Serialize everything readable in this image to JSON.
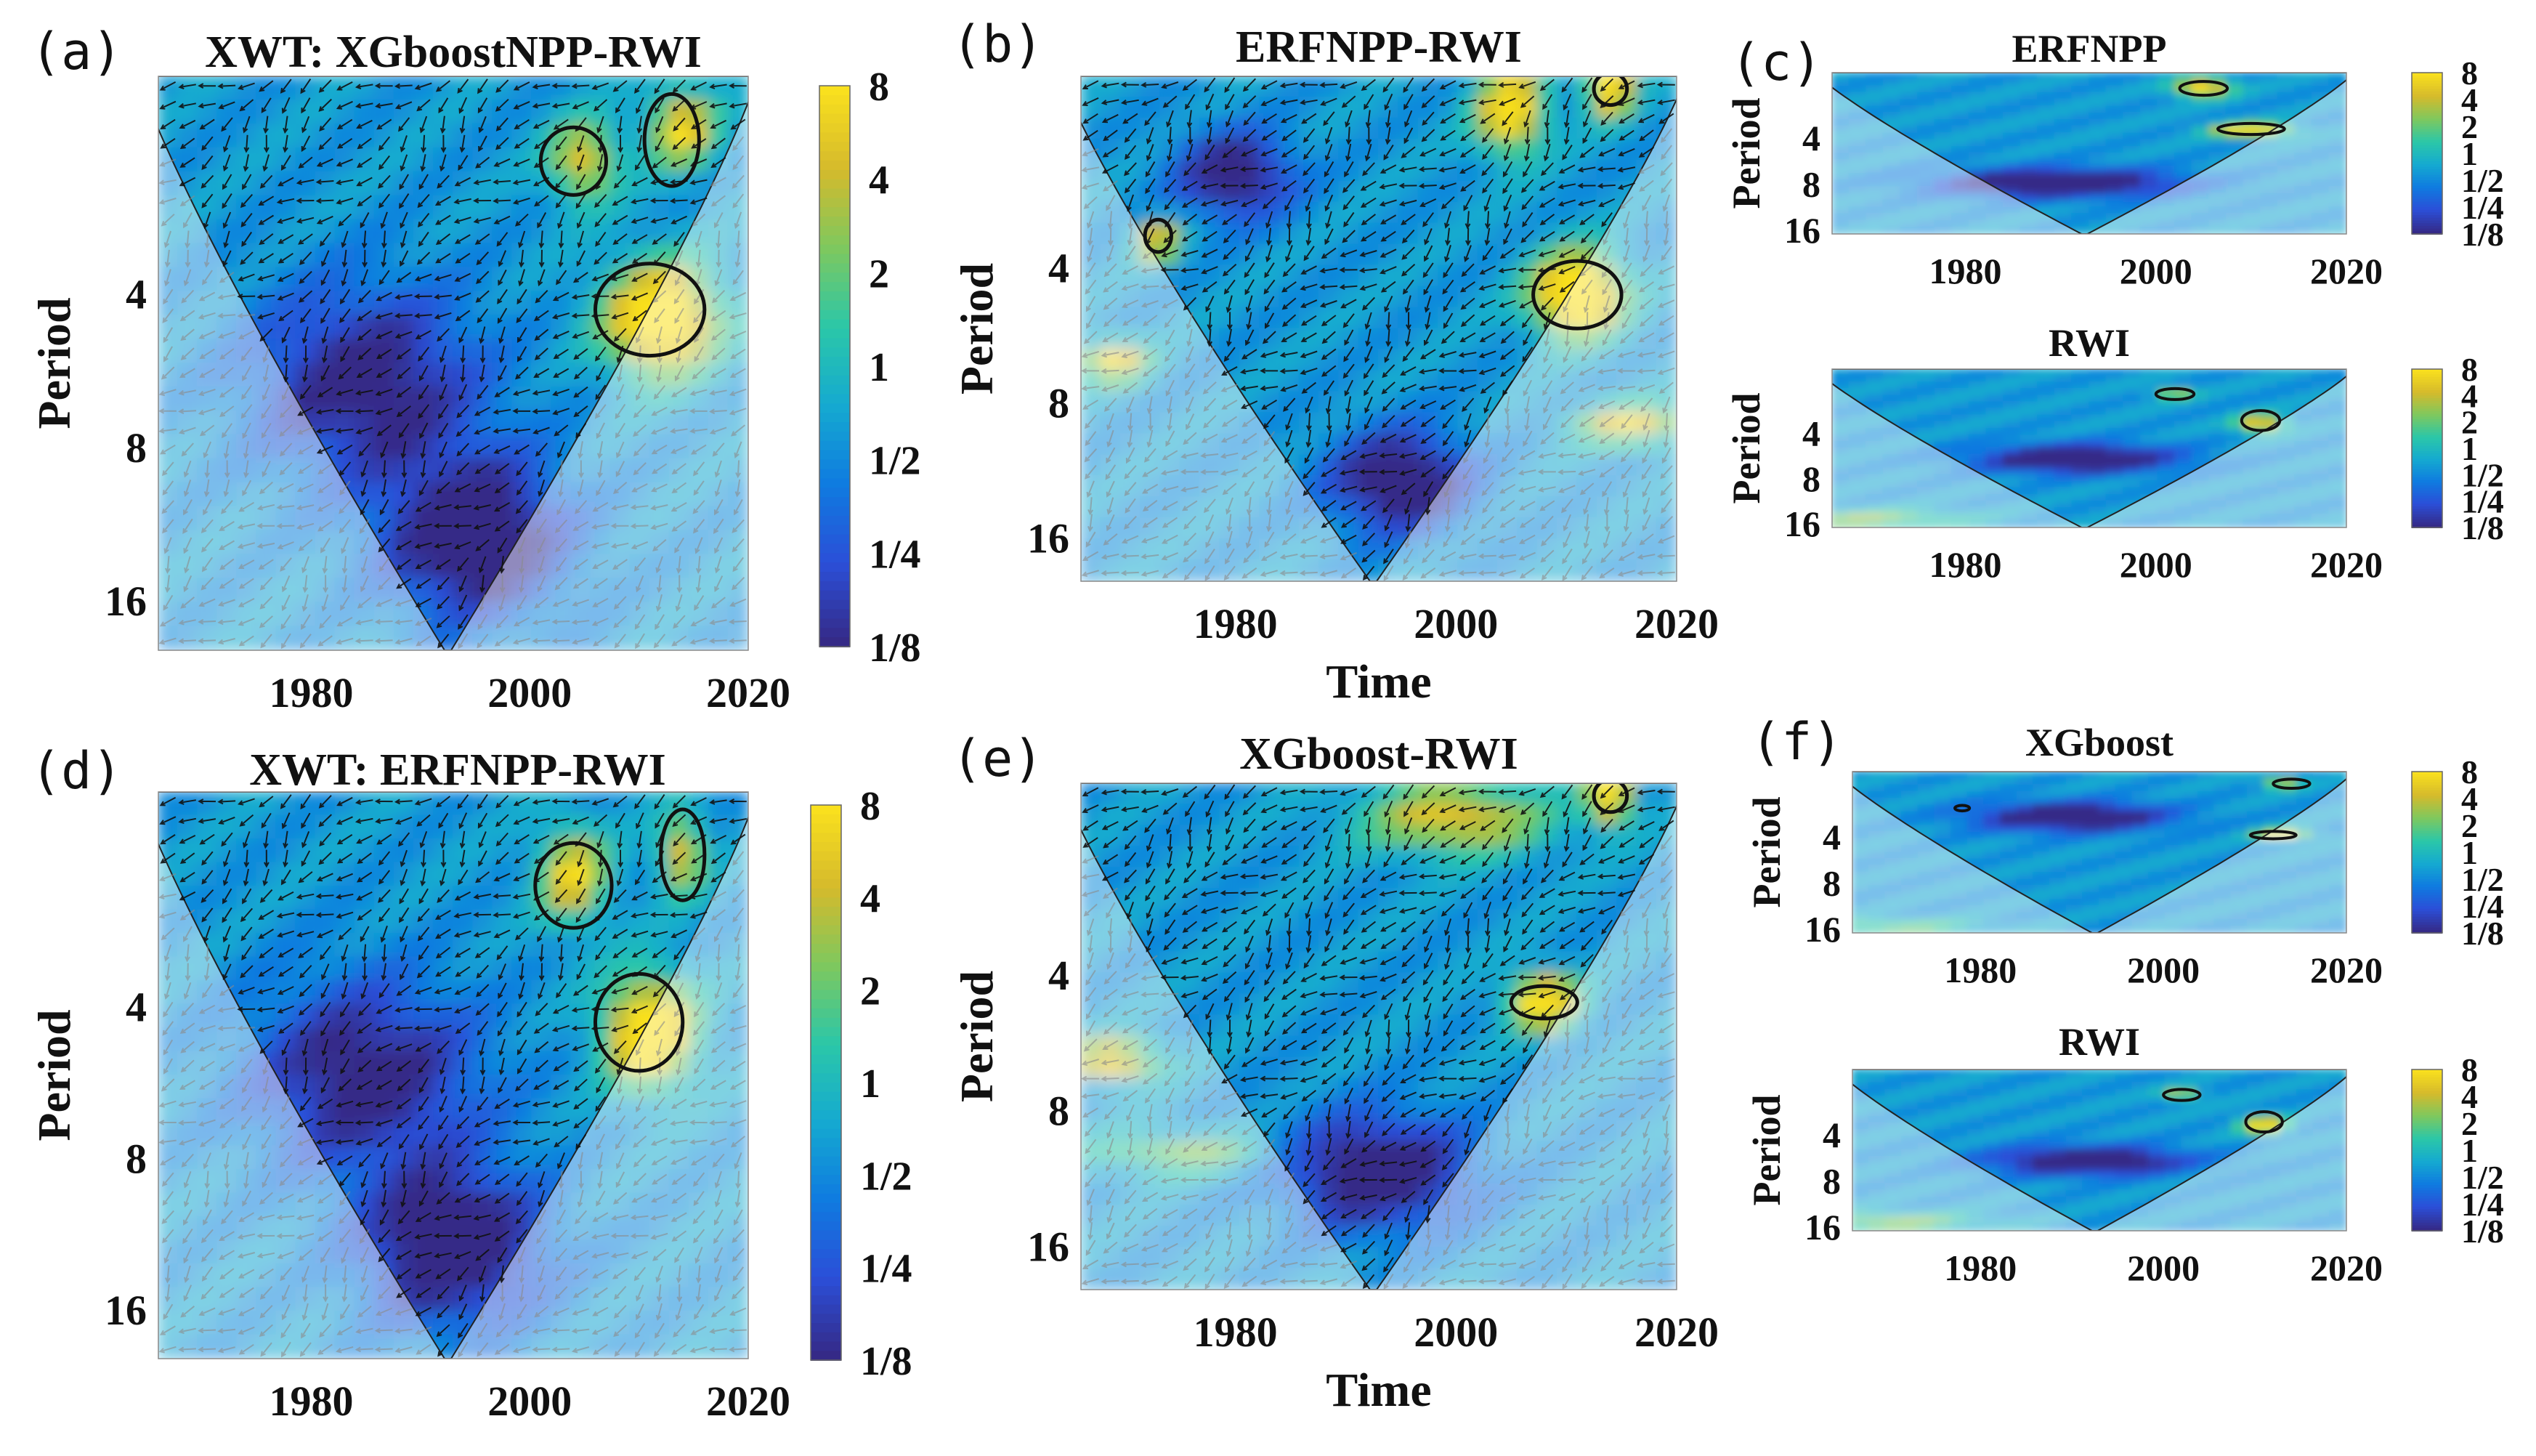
{
  "colors": {
    "parula": [
      "#352a87",
      "#2b4fd8",
      "#0f7be0",
      "#15aad0",
      "#2bc7a8",
      "#7ec85e",
      "#d5ba2c",
      "#f9e01e"
    ],
    "arrow_significant": "#111111",
    "arrow_outside": "#8a8a8a",
    "contour": "#111111",
    "cone_mask": "rgba(255,255,255,0.45)"
  },
  "chart_data": [
    {
      "id": "a",
      "type": "heatmap",
      "panel_label": "(a)",
      "title": "XWT: XGboostNPP-RWI",
      "ylabel": "Period",
      "xlabel": "",
      "xlim": [
        1966,
        2020
      ],
      "ylim": [
        1.5,
        20
      ],
      "xticks": [
        "1980",
        "2000",
        "2020"
      ],
      "yticks": [
        "4",
        "8",
        "16"
      ],
      "colorbar": [
        "8",
        "4",
        "2",
        "1",
        "1/2",
        "1/4",
        "1/8"
      ],
      "arrows": true,
      "hotspots": [
        {
          "x": 2012,
          "p": 4.5,
          "v": 0.85,
          "sx": 5,
          "sp": 0.35
        },
        {
          "x": 2014,
          "p": 1.9,
          "v": 0.6,
          "sx": 3,
          "sp": 0.25
        },
        {
          "x": 2005,
          "p": 2.2,
          "v": 0.55,
          "sx": 3,
          "sp": 0.25
        },
        {
          "x": 1985,
          "p": 6.0,
          "v": -0.45,
          "sx": 10,
          "sp": 0.6
        },
        {
          "x": 1995,
          "p": 12.0,
          "v": -0.55,
          "sx": 8,
          "sp": 0.5
        }
      ],
      "significant_regions": [
        {
          "x": 2004,
          "p": 2.2,
          "rx": 3,
          "rp": 0.22
        },
        {
          "x": 2013,
          "p": 2.0,
          "rx": 2.5,
          "rp": 0.3
        },
        {
          "x": 2011,
          "p": 4.3,
          "rx": 5,
          "rp": 0.3
        }
      ]
    },
    {
      "id": "b",
      "type": "heatmap",
      "panel_label": "(b)",
      "title": "ERFNPP-RWI",
      "ylabel": "Period",
      "xlabel": "Time",
      "xlim": [
        1966,
        2020
      ],
      "ylim": [
        1.5,
        20
      ],
      "xticks": [
        "1980",
        "2000",
        "2020"
      ],
      "yticks": [
        "4",
        "8",
        "16"
      ],
      "colorbar": [],
      "arrows": true,
      "hotspots": [
        {
          "x": 2011,
          "p": 4.6,
          "v": 0.9,
          "sx": 4,
          "sp": 0.3
        },
        {
          "x": 2005,
          "p": 1.8,
          "v": 0.75,
          "sx": 3,
          "sp": 0.3
        },
        {
          "x": 2014,
          "p": 1.6,
          "v": 0.8,
          "sx": 2,
          "sp": 0.2
        },
        {
          "x": 1973,
          "p": 3.5,
          "v": 0.6,
          "sx": 2,
          "sp": 0.15
        },
        {
          "x": 1969,
          "p": 6.5,
          "v": 0.6,
          "sx": 3,
          "sp": 0.15
        },
        {
          "x": 2016,
          "p": 9.0,
          "v": 0.55,
          "sx": 5,
          "sp": 0.15
        },
        {
          "x": 1995,
          "p": 12.0,
          "v": -0.55,
          "sx": 6,
          "sp": 0.35
        },
        {
          "x": 1980,
          "p": 2.5,
          "v": -0.5,
          "sx": 5,
          "sp": 0.3
        }
      ],
      "significant_regions": [
        {
          "x": 2011,
          "p": 4.6,
          "rx": 4,
          "rp": 0.25
        },
        {
          "x": 1973,
          "p": 3.4,
          "rx": 1.2,
          "rp": 0.12
        },
        {
          "x": 2014,
          "p": 1.6,
          "rx": 1.5,
          "rp": 0.12
        }
      ]
    },
    {
      "id": "c1",
      "type": "heatmap",
      "panel_label": "(c)",
      "title": "ERFNPP",
      "ylabel": "Period",
      "xlabel": "",
      "xlim": [
        1966,
        2020
      ],
      "ylim": [
        1.5,
        17
      ],
      "xticks": [
        "1980",
        "2000",
        "2020"
      ],
      "yticks": [
        "4",
        "8",
        "16"
      ],
      "colorbar": [
        "8",
        "4",
        "2",
        "1",
        "1/2",
        "1/4",
        "1/8"
      ],
      "arrows": false,
      "hotspots": [
        {
          "x": 2010,
          "p": 3.6,
          "v": 0.8,
          "sx": 4,
          "sp": 0.15
        },
        {
          "x": 2005,
          "p": 1.9,
          "v": 0.7,
          "sx": 3,
          "sp": 0.2
        },
        {
          "x": 1990,
          "p": 8.0,
          "v": -0.6,
          "sx": 12,
          "sp": 0.3
        }
      ],
      "significant_regions": [
        {
          "x": 2005,
          "p": 1.9,
          "rx": 2.5,
          "rp": 0.15
        },
        {
          "x": 2010,
          "p": 3.5,
          "rx": 3.5,
          "rp": 0.12
        }
      ]
    },
    {
      "id": "c2",
      "type": "heatmap",
      "panel_label": "",
      "title": "RWI",
      "ylabel": "Period",
      "xlabel": "",
      "xlim": [
        1966,
        2020
      ],
      "ylim": [
        1.5,
        17
      ],
      "xticks": [
        "1980",
        "2000",
        "2020"
      ],
      "yticks": [
        "4",
        "8",
        "16"
      ],
      "colorbar": [
        "8",
        "4",
        "2",
        "1",
        "1/2",
        "1/4",
        "1/8"
      ],
      "arrows": false,
      "hotspots": [
        {
          "x": 2011,
          "p": 3.5,
          "v": 0.65,
          "sx": 2.5,
          "sp": 0.2
        },
        {
          "x": 2002,
          "p": 2.2,
          "v": 0.5,
          "sx": 2,
          "sp": 0.12
        },
        {
          "x": 1970,
          "p": 15.0,
          "v": 0.35,
          "sx": 10,
          "sp": 0.2
        },
        {
          "x": 1992,
          "p": 6.0,
          "v": -0.6,
          "sx": 10,
          "sp": 0.3
        }
      ],
      "significant_regions": [
        {
          "x": 2002,
          "p": 2.2,
          "rx": 2,
          "rp": 0.12
        },
        {
          "x": 2011,
          "p": 3.3,
          "rx": 2,
          "rp": 0.22
        }
      ]
    },
    {
      "id": "d",
      "type": "heatmap",
      "panel_label": "(d)",
      "title": "XWT: ERFNPP-RWI",
      "ylabel": "Period",
      "xlabel": "",
      "xlim": [
        1966,
        2020
      ],
      "ylim": [
        1.5,
        20
      ],
      "xticks": [
        "1980",
        "2000",
        "2020"
      ],
      "yticks": [
        "4",
        "8",
        "16"
      ],
      "colorbar": [
        "8",
        "4",
        "2",
        "1",
        "1/2",
        "1/4",
        "1/8"
      ],
      "arrows": true,
      "hotspots": [
        {
          "x": 2011,
          "p": 4.5,
          "v": 0.85,
          "sx": 4,
          "sp": 0.35
        },
        {
          "x": 2004,
          "p": 2.2,
          "v": 0.6,
          "sx": 3,
          "sp": 0.3
        },
        {
          "x": 2014,
          "p": 2.0,
          "v": 0.55,
          "sx": 2,
          "sp": 0.25
        },
        {
          "x": 1985,
          "p": 5.5,
          "v": -0.45,
          "sx": 10,
          "sp": 0.6
        },
        {
          "x": 1993,
          "p": 12.0,
          "v": -0.55,
          "sx": 8,
          "sp": 0.5
        }
      ],
      "significant_regions": [
        {
          "x": 2004,
          "p": 2.3,
          "rx": 3.5,
          "rp": 0.28
        },
        {
          "x": 2014,
          "p": 2.0,
          "rx": 2,
          "rp": 0.3
        },
        {
          "x": 2010,
          "p": 4.3,
          "rx": 4,
          "rp": 0.32
        }
      ]
    },
    {
      "id": "e",
      "type": "heatmap",
      "panel_label": "(e)",
      "title": "XGboost-RWI",
      "ylabel": "Period",
      "xlabel": "Time",
      "xlim": [
        1966,
        2020
      ],
      "ylim": [
        1.5,
        20
      ],
      "xticks": [
        "1980",
        "2000",
        "2020"
      ],
      "yticks": [
        "4",
        "8",
        "16"
      ],
      "colorbar": [],
      "arrows": true,
      "hotspots": [
        {
          "x": 2008,
          "p": 4.6,
          "v": 0.8,
          "sx": 3,
          "sp": 0.2
        },
        {
          "x": 2014,
          "p": 1.6,
          "v": 0.8,
          "sx": 2,
          "sp": 0.2
        },
        {
          "x": 2000,
          "p": 1.8,
          "v": 0.55,
          "sx": 8,
          "sp": 0.25
        },
        {
          "x": 1969,
          "p": 6.2,
          "v": 0.65,
          "sx": 4,
          "sp": 0.15
        },
        {
          "x": 1975,
          "p": 10.0,
          "v": 0.35,
          "sx": 8,
          "sp": 0.15
        },
        {
          "x": 1993,
          "p": 11.0,
          "v": -0.55,
          "sx": 8,
          "sp": 0.4
        }
      ],
      "significant_regions": [
        {
          "x": 2008,
          "p": 4.6,
          "rx": 3,
          "rp": 0.12
        },
        {
          "x": 2014,
          "p": 1.6,
          "rx": 1.5,
          "rp": 0.12
        }
      ]
    },
    {
      "id": "f1",
      "type": "heatmap",
      "panel_label": "(f)",
      "title": "XGboost",
      "ylabel": "Period",
      "xlabel": "",
      "xlim": [
        1966,
        2020
      ],
      "ylim": [
        1.5,
        17
      ],
      "xticks": [
        "1980",
        "2000",
        "2020"
      ],
      "yticks": [
        "4",
        "8",
        "16"
      ],
      "colorbar": [
        "8",
        "4",
        "2",
        "1",
        "1/2",
        "1/4",
        "1/8"
      ],
      "arrows": false,
      "hotspots": [
        {
          "x": 2013,
          "p": 3.9,
          "v": 0.65,
          "sx": 3,
          "sp": 0.12
        },
        {
          "x": 2013,
          "p": 1.8,
          "v": 0.55,
          "sx": 2,
          "sp": 0.12
        },
        {
          "x": 1990,
          "p": 3.0,
          "v": -0.6,
          "sx": 10,
          "sp": 0.3
        },
        {
          "x": 1970,
          "p": 15.5,
          "v": 0.3,
          "sx": 10,
          "sp": 0.15
        }
      ],
      "significant_regions": [
        {
          "x": 2012,
          "p": 3.9,
          "rx": 2.5,
          "rp": 0.08
        },
        {
          "x": 2014,
          "p": 1.8,
          "rx": 2,
          "rp": 0.1
        },
        {
          "x": 1978,
          "p": 2.6,
          "rx": 0.8,
          "rp": 0.06
        }
      ]
    },
    {
      "id": "f2",
      "type": "heatmap",
      "panel_label": "",
      "title": "RWI",
      "ylabel": "Period",
      "xlabel": "",
      "xlim": [
        1966,
        2020
      ],
      "ylim": [
        1.5,
        17
      ],
      "xticks": [
        "1980",
        "2000",
        "2020"
      ],
      "yticks": [
        "4",
        "8",
        "16"
      ],
      "colorbar": [
        "8",
        "4",
        "2",
        "1",
        "1/2",
        "1/4",
        "1/8"
      ],
      "arrows": false,
      "hotspots": [
        {
          "x": 2011,
          "p": 3.5,
          "v": 0.65,
          "sx": 2.5,
          "sp": 0.2
        },
        {
          "x": 2002,
          "p": 2.2,
          "v": 0.5,
          "sx": 2,
          "sp": 0.12
        },
        {
          "x": 1970,
          "p": 15.0,
          "v": 0.35,
          "sx": 10,
          "sp": 0.2
        },
        {
          "x": 1992,
          "p": 6.0,
          "v": -0.6,
          "sx": 10,
          "sp": 0.3
        }
      ],
      "significant_regions": [
        {
          "x": 2002,
          "p": 2.2,
          "rx": 2,
          "rp": 0.12
        },
        {
          "x": 2011,
          "p": 3.3,
          "rx": 2,
          "rp": 0.22
        }
      ]
    }
  ]
}
